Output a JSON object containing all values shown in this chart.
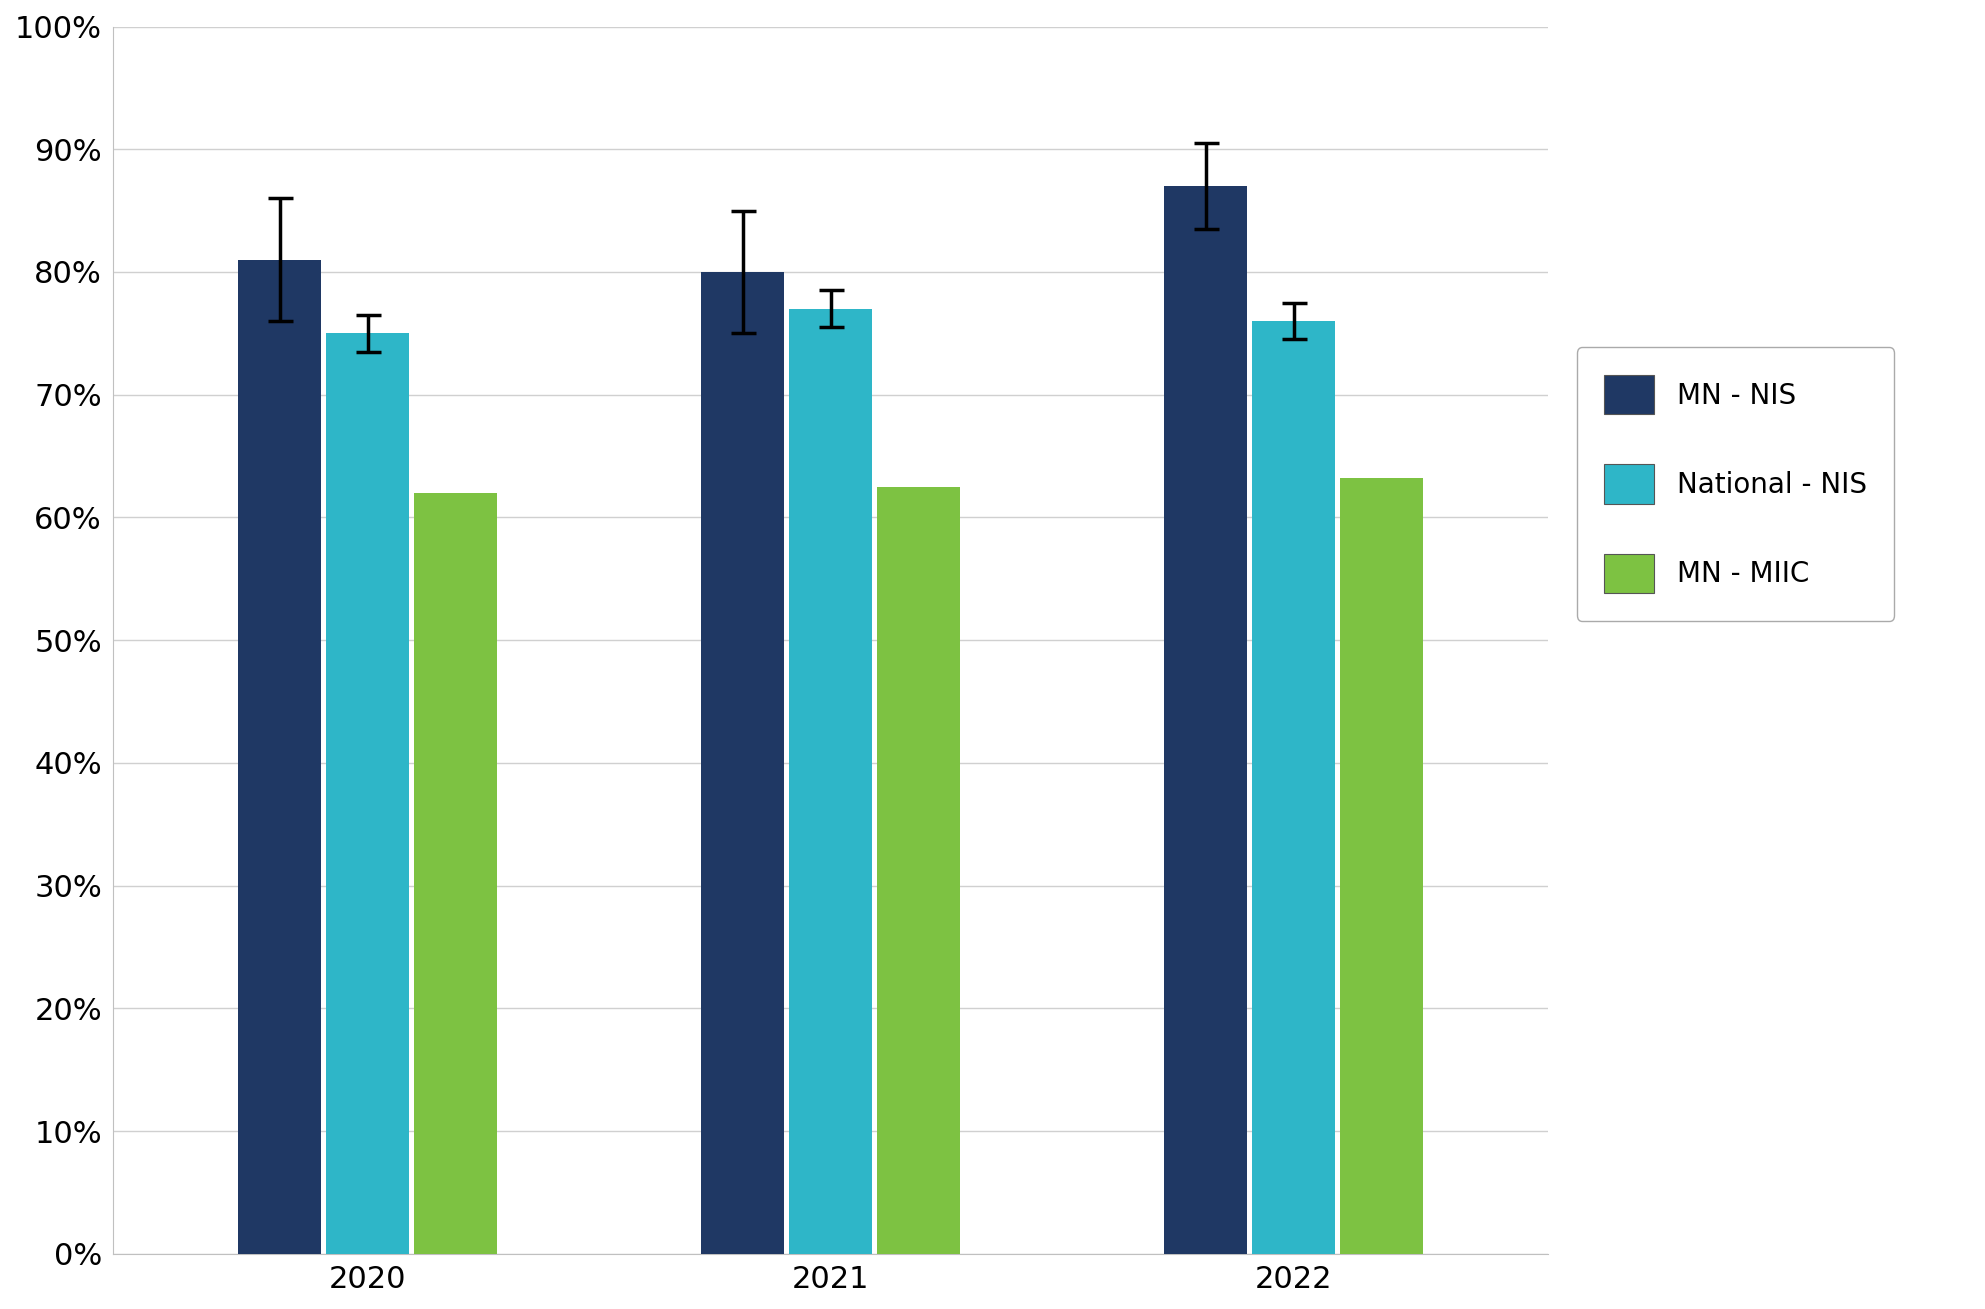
{
  "years": [
    "2020",
    "2021",
    "2022"
  ],
  "series": {
    "MN - NIS": {
      "values": [
        0.81,
        0.8,
        0.87
      ],
      "errors": [
        0.05,
        0.05,
        0.035
      ],
      "color": "#1F3864"
    },
    "National - NIS": {
      "values": [
        0.75,
        0.77,
        0.76
      ],
      "errors": [
        0.015,
        0.015,
        0.015
      ],
      "color": "#2EB6C8"
    },
    "MN - MIIC": {
      "values": [
        0.62,
        0.625,
        0.632
      ],
      "errors": [
        null,
        null,
        null
      ],
      "color": "#7DC242"
    }
  },
  "ylim": [
    0,
    1.0
  ],
  "yticks": [
    0,
    0.1,
    0.2,
    0.3,
    0.4,
    0.5,
    0.6,
    0.7,
    0.8,
    0.9,
    1.0
  ],
  "ytick_labels": [
    "0%",
    "10%",
    "20%",
    "30%",
    "40%",
    "50%",
    "60%",
    "70%",
    "80%",
    "90%",
    "100%"
  ],
  "background_color": "#FFFFFF",
  "plot_bg_color": "#FFFFFF",
  "bar_width": 0.18,
  "legend_fontsize": 20,
  "tick_fontsize": 22,
  "figsize": [
    19.85,
    13.09
  ],
  "dpi": 100
}
